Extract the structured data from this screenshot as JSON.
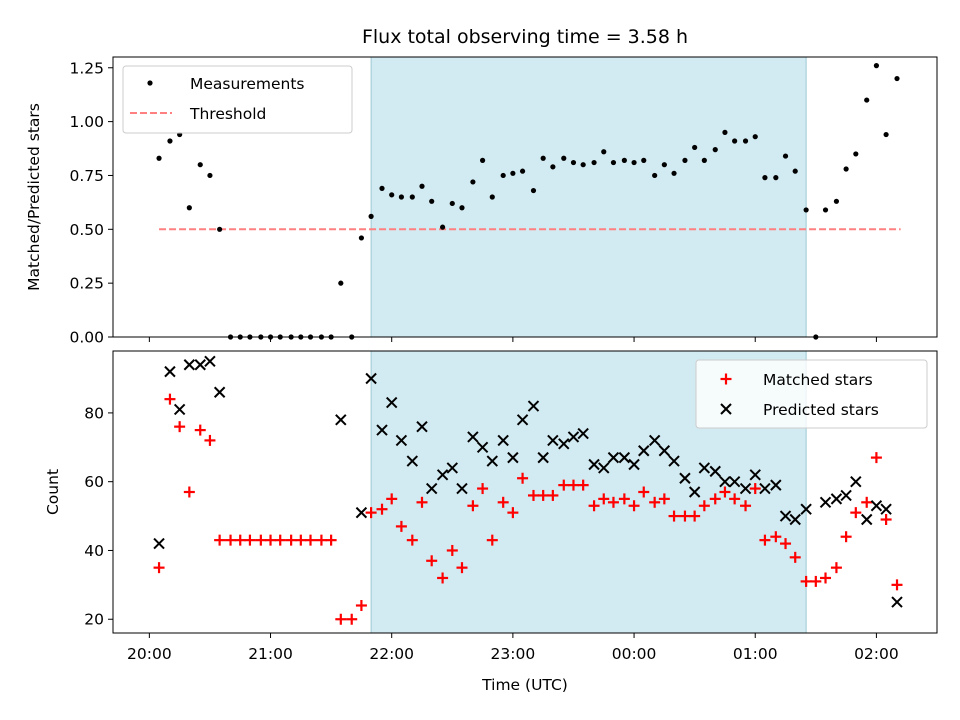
{
  "chart_data": [
    {
      "type": "scatter",
      "title": "Flux total observing time = 3.58 h",
      "xlabel": "",
      "ylabel": "Matched/Predicted stars",
      "xlim": [
        -0.3,
        6.5
      ],
      "ylim": [
        0,
        1.3
      ],
      "xticks": [
        0,
        1,
        2,
        3,
        4,
        5,
        6
      ],
      "yticks": [
        0,
        0.25,
        0.5,
        0.75,
        1.0,
        1.25
      ],
      "ytick_labels": [
        "0.00",
        "0.25",
        "0.50",
        "0.75",
        "1.00",
        "1.25"
      ],
      "shaded_region": [
        1.83,
        5.42
      ],
      "shade_color": "#add8e6",
      "legend": [
        "Measurements",
        "Threshold"
      ],
      "legend_position": "top-left",
      "series": [
        {
          "name": "Measurements",
          "marker": "dot",
          "color": "#000000",
          "x": [
            0.08,
            0.17,
            0.25,
            0.33,
            0.42,
            0.5,
            0.58,
            0.67,
            0.75,
            0.83,
            0.92,
            1.0,
            1.08,
            1.17,
            1.25,
            1.33,
            1.42,
            1.5,
            1.58,
            1.67,
            1.75,
            1.83,
            1.92,
            2.0,
            2.08,
            2.17,
            2.25,
            2.33,
            2.42,
            2.5,
            2.58,
            2.67,
            2.75,
            2.83,
            2.92,
            3.0,
            3.08,
            3.17,
            3.25,
            3.33,
            3.42,
            3.5,
            3.58,
            3.67,
            3.75,
            3.83,
            3.92,
            4.0,
            4.08,
            4.17,
            4.25,
            4.33,
            4.42,
            4.5,
            4.58,
            4.67,
            4.75,
            4.83,
            4.92,
            5.0,
            5.08,
            5.17,
            5.25,
            5.33,
            5.42,
            5.5,
            5.58,
            5.67,
            5.75,
            5.83,
            5.92,
            6.0,
            6.08,
            6.17
          ],
          "y": [
            0.83,
            0.91,
            0.94,
            0.6,
            0.8,
            0.75,
            0.5,
            0,
            0,
            0,
            0,
            0,
            0,
            0,
            0,
            0,
            0,
            0,
            0.25,
            0,
            0.46,
            0.56,
            0.69,
            0.66,
            0.65,
            0.65,
            0.7,
            0.63,
            0.51,
            0.62,
            0.6,
            0.72,
            0.82,
            0.65,
            0.75,
            0.76,
            0.77,
            0.68,
            0.83,
            0.79,
            0.83,
            0.81,
            0.8,
            0.81,
            0.86,
            0.81,
            0.82,
            0.81,
            0.82,
            0.75,
            0.8,
            0.76,
            0.82,
            0.88,
            0.82,
            0.87,
            0.95,
            0.91,
            0.91,
            0.93,
            0.74,
            0.74,
            0.84,
            0.77,
            0.59,
            0,
            0.59,
            0.63,
            0.78,
            0.85,
            1.1,
            1.26,
            0.94,
            1.2
          ]
        },
        {
          "name": "Threshold",
          "style": "dashed",
          "color": "#ff8080",
          "x": [
            0.08,
            6.2
          ],
          "y": [
            0.5,
            0.5
          ]
        }
      ]
    },
    {
      "type": "scatter",
      "title": "",
      "xlabel": "Time (UTC)",
      "ylabel": "Count",
      "xlim": [
        -0.3,
        6.5
      ],
      "ylim": [
        16,
        98
      ],
      "xticks": [
        0,
        1,
        2,
        3,
        4,
        5,
        6
      ],
      "xtick_labels": [
        "20:00",
        "21:00",
        "22:00",
        "23:00",
        "00:00",
        "01:00",
        "02:00"
      ],
      "yticks": [
        20,
        40,
        60,
        80
      ],
      "ytick_labels": [
        "20",
        "40",
        "60",
        "80"
      ],
      "shaded_region": [
        1.83,
        5.42
      ],
      "shade_color": "#add8e6",
      "legend": [
        "Matched stars",
        "Predicted stars"
      ],
      "legend_position": "top-right",
      "series": [
        {
          "name": "Matched stars",
          "marker": "plus",
          "color": "#ff0000",
          "x": [
            0.08,
            0.17,
            0.25,
            0.33,
            0.42,
            0.5,
            0.58,
            0.67,
            0.75,
            0.83,
            0.92,
            1.0,
            1.08,
            1.17,
            1.25,
            1.33,
            1.42,
            1.5,
            1.58,
            1.67,
            1.75,
            1.83,
            1.92,
            2.0,
            2.08,
            2.17,
            2.25,
            2.33,
            2.42,
            2.5,
            2.58,
            2.67,
            2.75,
            2.83,
            2.92,
            3.0,
            3.08,
            3.17,
            3.25,
            3.33,
            3.42,
            3.5,
            3.58,
            3.67,
            3.75,
            3.83,
            3.92,
            4.0,
            4.08,
            4.17,
            4.25,
            4.33,
            4.42,
            4.5,
            4.58,
            4.67,
            4.75,
            4.83,
            4.92,
            5.0,
            5.08,
            5.17,
            5.25,
            5.33,
            5.42,
            5.5,
            5.58,
            5.67,
            5.75,
            5.83,
            5.92,
            6.0,
            6.08,
            6.17
          ],
          "y": [
            35,
            84,
            76,
            57,
            75,
            72,
            43,
            43,
            43,
            43,
            43,
            43,
            43,
            43,
            43,
            43,
            43,
            43,
            20,
            20,
            24,
            51,
            52,
            55,
            47,
            43,
            54,
            37,
            32,
            40,
            35,
            53,
            58,
            43,
            54,
            51,
            61,
            56,
            56,
            56,
            59,
            59,
            59,
            53,
            55,
            54,
            55,
            53,
            57,
            54,
            55,
            50,
            50,
            50,
            53,
            55,
            57,
            55,
            53,
            58,
            43,
            44,
            42,
            38,
            31,
            31,
            32,
            35,
            44,
            51,
            54,
            67,
            49,
            30
          ]
        },
        {
          "name": "Predicted stars",
          "marker": "x",
          "color": "#000000",
          "x": [
            0.08,
            0.17,
            0.25,
            0.33,
            0.42,
            0.5,
            0.58,
            1.58,
            1.75,
            1.83,
            1.92,
            2.0,
            2.08,
            2.17,
            2.25,
            2.33,
            2.42,
            2.5,
            2.58,
            2.67,
            2.75,
            2.83,
            2.92,
            3.0,
            3.08,
            3.17,
            3.25,
            3.33,
            3.42,
            3.5,
            3.58,
            3.67,
            3.75,
            3.83,
            3.92,
            4.0,
            4.08,
            4.17,
            4.25,
            4.33,
            4.42,
            4.5,
            4.58,
            4.67,
            4.75,
            4.83,
            4.92,
            5.0,
            5.08,
            5.17,
            5.25,
            5.33,
            5.42,
            5.58,
            5.67,
            5.75,
            5.83,
            5.92,
            6.0,
            6.08,
            6.17
          ],
          "y": [
            42,
            92,
            81,
            94,
            94,
            95,
            86,
            78,
            51,
            90,
            75,
            83,
            72,
            66,
            76,
            58,
            62,
            64,
            58,
            73,
            70,
            66,
            72,
            67,
            78,
            82,
            67,
            72,
            71,
            73,
            74,
            65,
            64,
            67,
            67,
            65,
            69,
            72,
            69,
            66,
            61,
            57,
            64,
            63,
            60,
            60,
            58,
            62,
            58,
            59,
            50,
            49,
            52,
            54,
            55,
            56,
            60,
            49,
            53,
            52,
            25
          ]
        }
      ]
    }
  ]
}
